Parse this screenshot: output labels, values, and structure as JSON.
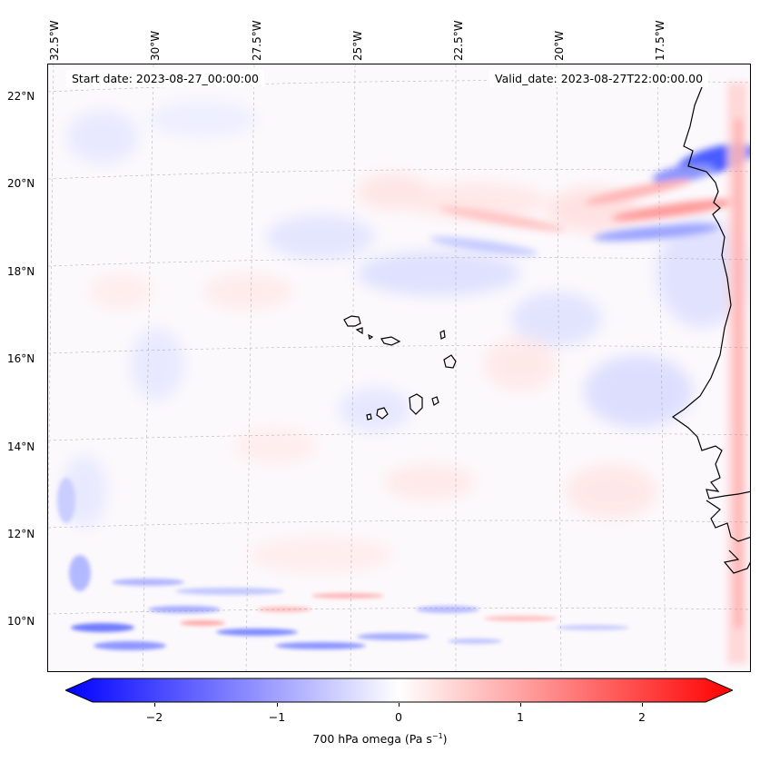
{
  "info": {
    "start_date": "Start date: 2023-08-27_00:00:00",
    "valid_date": "Valid_date: 2023-08-27T22:00:00.00"
  },
  "map": {
    "lon_labels": [
      "32.5°W",
      "30°W",
      "27.5°W",
      "25°W",
      "22.5°W",
      "20°W",
      "17.5°W"
    ],
    "lat_labels": [
      "22°N",
      "20°N",
      "18°N",
      "16°N",
      "14°N",
      "12°N",
      "10°N"
    ],
    "gridlines": "dashed",
    "coastline_color": "#000000",
    "field_colors": {
      "negative": "#0000ff",
      "zero": "#ffffff",
      "positive": "#ff0000"
    }
  },
  "colorbar": {
    "ticks": [
      "−2",
      "−1",
      "0",
      "1",
      "2"
    ],
    "tick_values": [
      -2,
      -1,
      0,
      1,
      2
    ],
    "range": [
      -2.6,
      2.6
    ],
    "extend": "both",
    "label_text": "700 hPa omega (Pa s",
    "label_exp": "−1",
    "label_close": ")"
  }
}
